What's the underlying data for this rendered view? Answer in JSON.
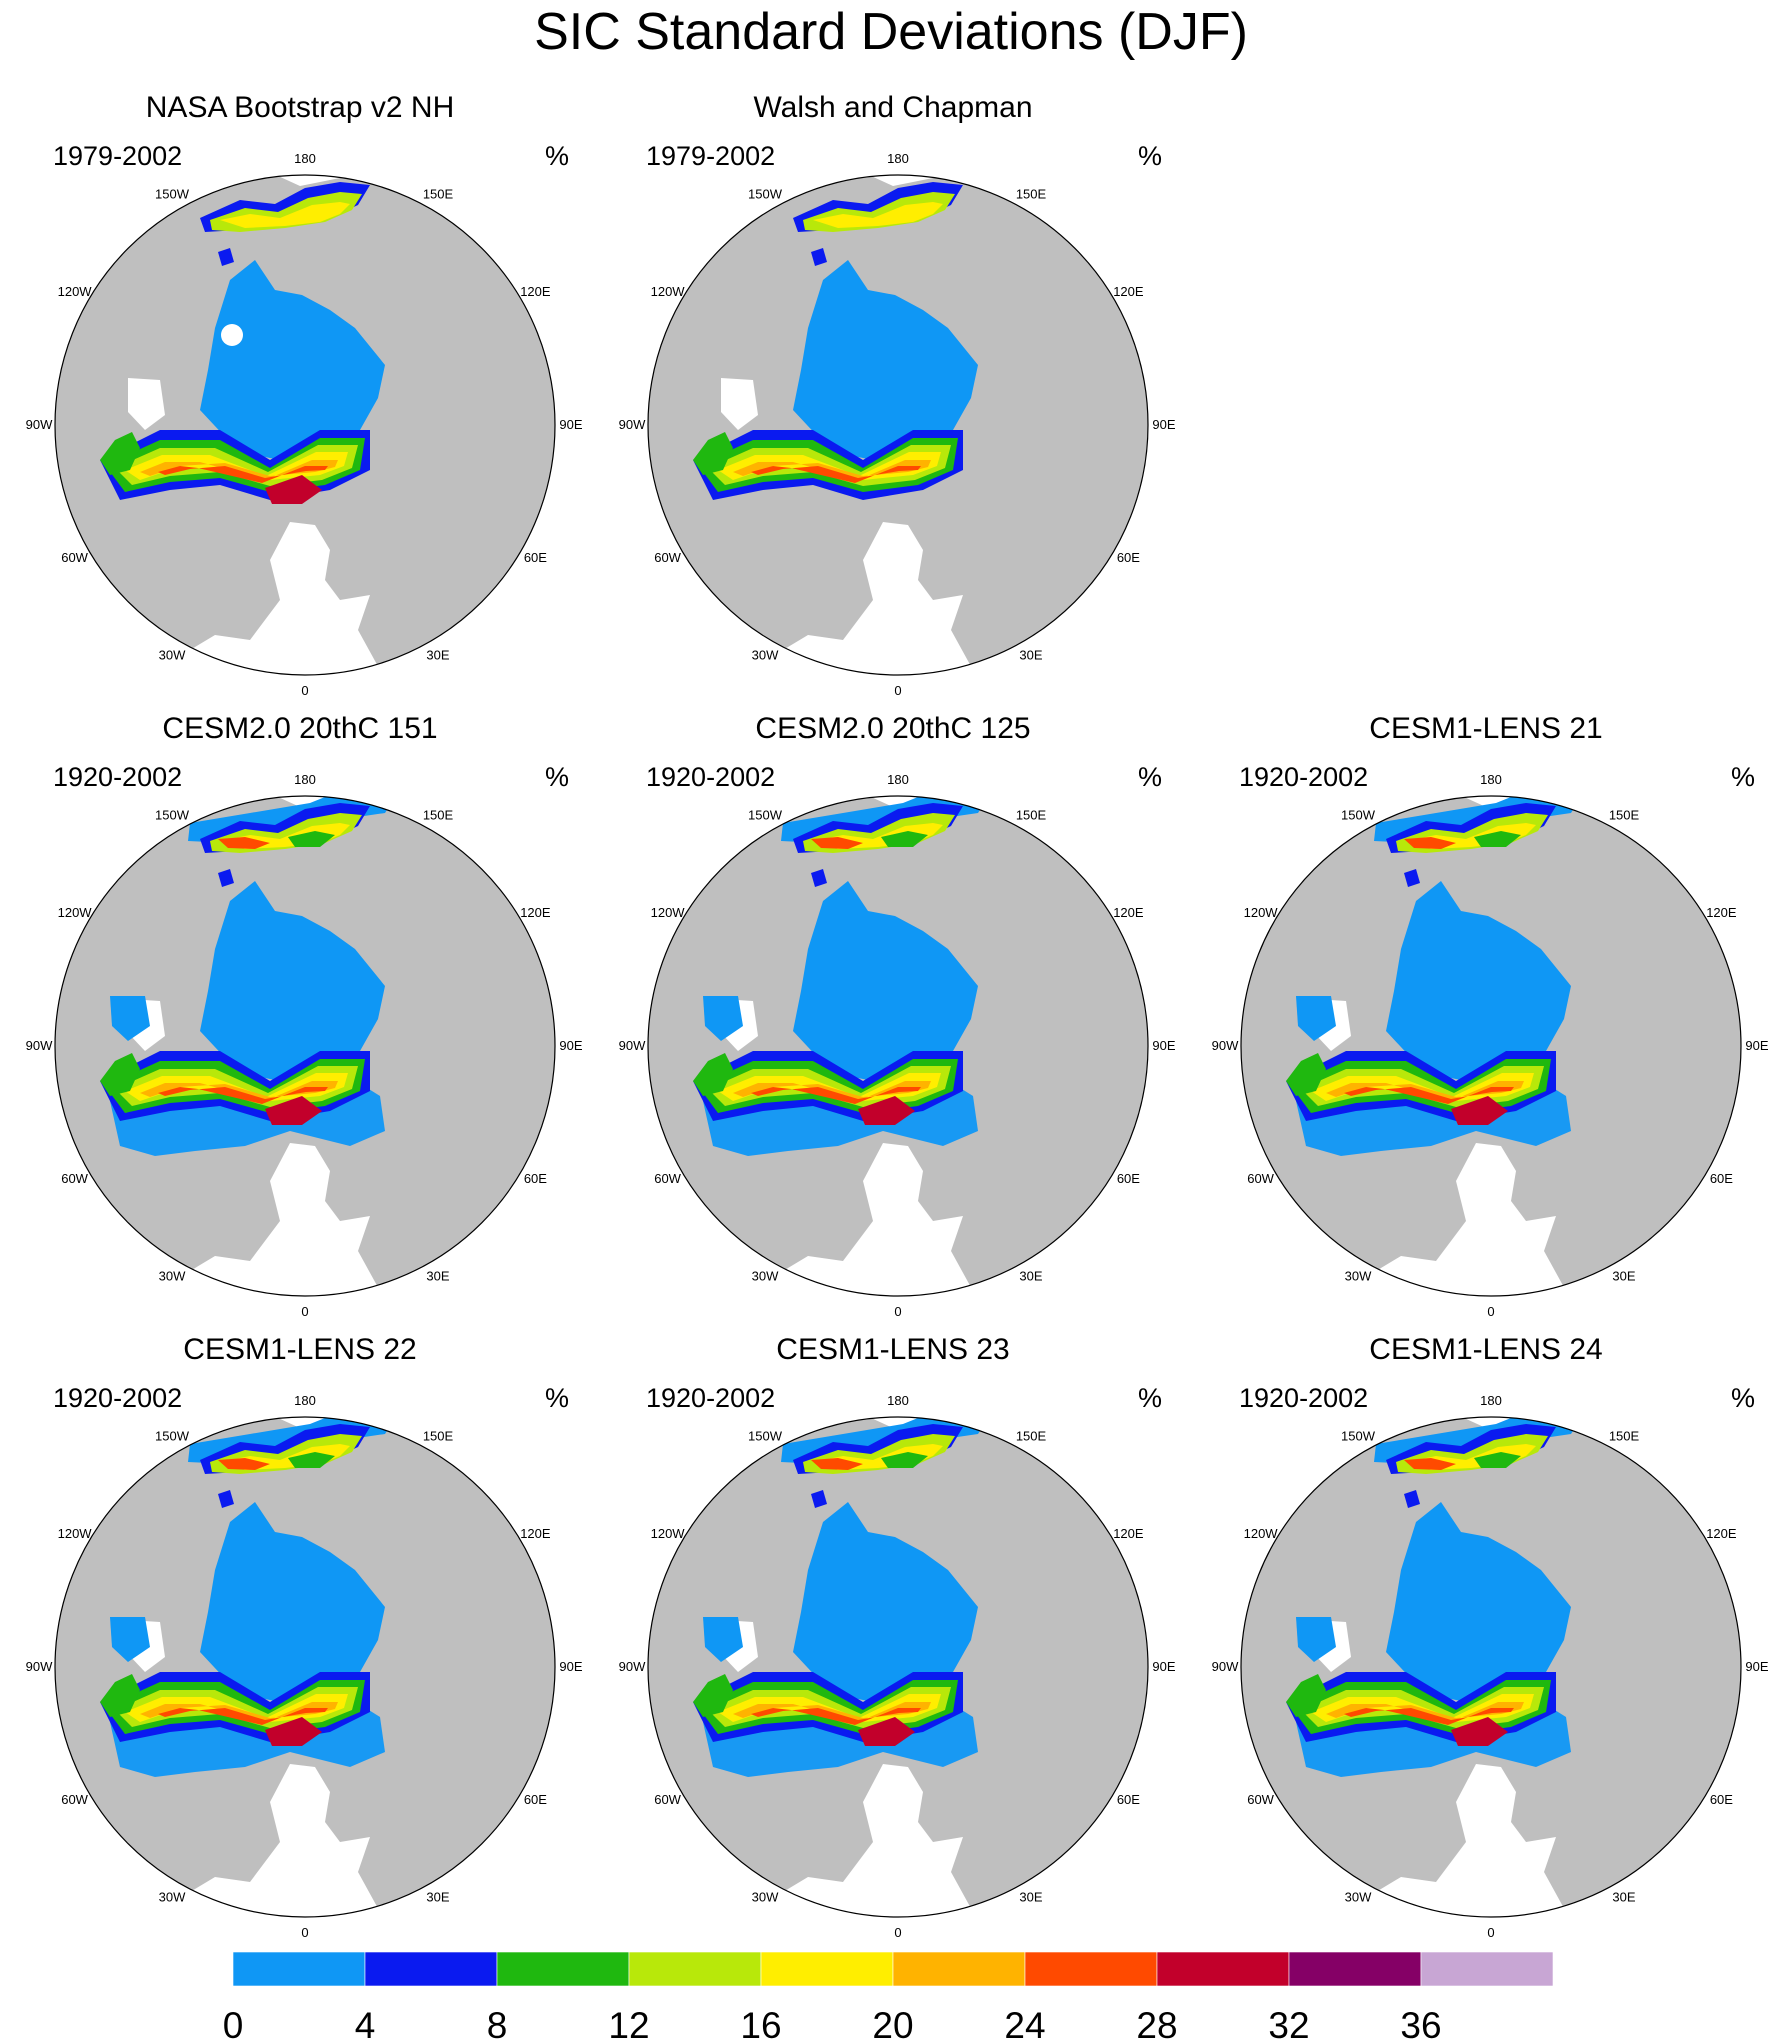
{
  "title": "SIC Standard Deviations (DJF)",
  "panels": [
    {
      "title": "NASA Bootstrap v2 NH",
      "period": "1979-2002",
      "unit": "%",
      "pole_hole": true,
      "coarse": false,
      "model": false
    },
    {
      "title": "Walsh and Chapman",
      "period": "1979-2002",
      "unit": "%",
      "pole_hole": false,
      "coarse": true,
      "model": false
    },
    {
      "title": "CESM2.0 20thC 151",
      "period": "1920-2002",
      "unit": "%",
      "pole_hole": false,
      "coarse": false,
      "model": true
    },
    {
      "title": "CESM2.0 20thC 125",
      "period": "1920-2002",
      "unit": "%",
      "pole_hole": false,
      "coarse": false,
      "model": true
    },
    {
      "title": "CESM1-LENS 21",
      "period": "1920-2002",
      "unit": "%",
      "pole_hole": false,
      "coarse": false,
      "model": true
    },
    {
      "title": "CESM1-LENS 22",
      "period": "1920-2002",
      "unit": "%",
      "pole_hole": false,
      "coarse": false,
      "model": true
    },
    {
      "title": "CESM1-LENS 23",
      "period": "1920-2002",
      "unit": "%",
      "pole_hole": false,
      "coarse": false,
      "model": true
    },
    {
      "title": "CESM1-LENS 24",
      "period": "1920-2002",
      "unit": "%",
      "pole_hole": false,
      "coarse": false,
      "model": true
    }
  ],
  "longitude_labels": [
    "180",
    "150E",
    "120E",
    "90E",
    "60E",
    "30E",
    "0",
    "30W",
    "60W",
    "90W",
    "120W",
    "150W"
  ],
  "colorbar": {
    "tick_labels": [
      "0",
      "4",
      "8",
      "12",
      "16",
      "20",
      "24",
      "28",
      "32",
      "36"
    ],
    "colors": [
      "#0f97f5",
      "#0a1af0",
      "#1fb80f",
      "#b8e80a",
      "#ffee00",
      "#ffb300",
      "#ff4a00",
      "#c2002b",
      "#850066",
      "#c8a6d4"
    ]
  },
  "map_colors": {
    "land": "#bfbfbf",
    "ocean": "#ffffff",
    "ice_low": "#0f97f5",
    "ice_4_8": "#0a1af0",
    "ice_8_12": "#1fb80f",
    "ice_12_16": "#b8e80a",
    "ice_16_20": "#ffee00",
    "ice_20_24": "#ffb300",
    "ice_24_28": "#ff4a00",
    "ice_28_32": "#c2002b"
  }
}
